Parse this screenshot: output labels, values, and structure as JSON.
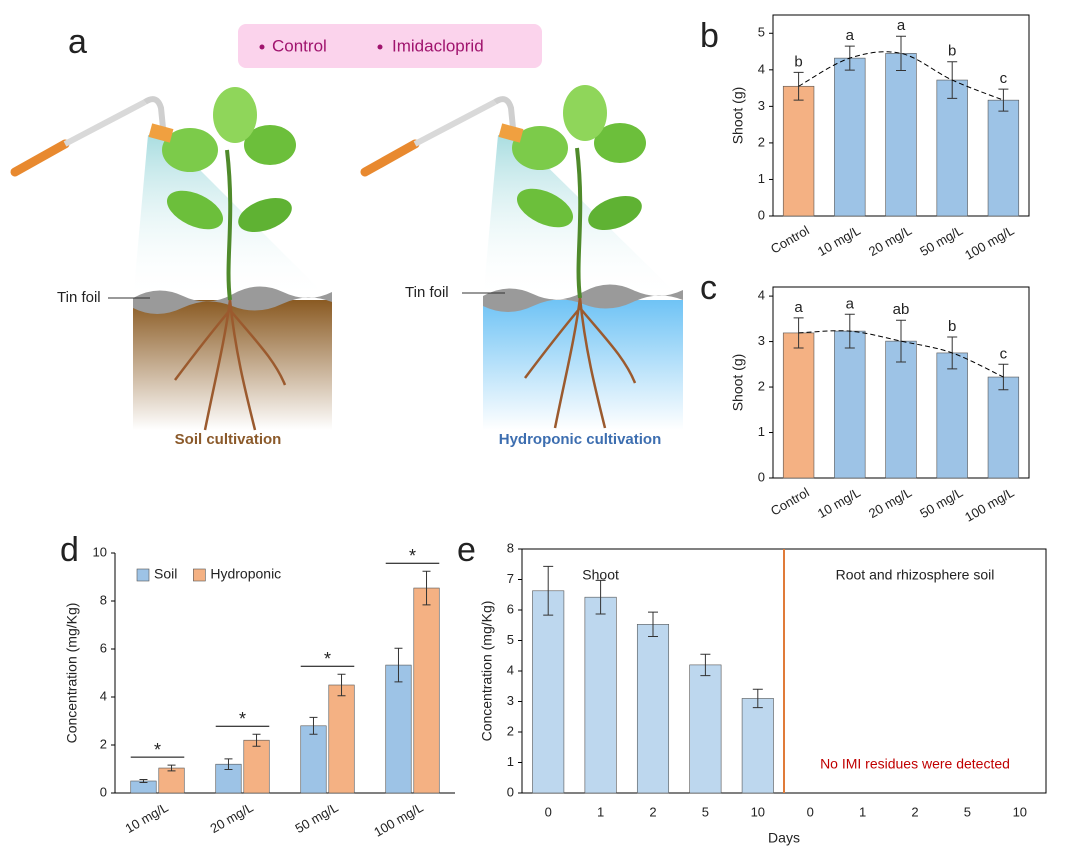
{
  "illustration": {
    "label": "a",
    "legend": [
      "Control",
      "Imidacloprid"
    ],
    "left": {
      "foil": "Tin foil",
      "caption": "Soil cultivation"
    },
    "right": {
      "foil": "Tin foil",
      "caption": "Hydroponic cultivation"
    }
  },
  "chart_data": [
    {
      "type": "bar",
      "label": "b",
      "ylabel": "Shoot (g)",
      "categories": [
        "Control",
        "10 mg/L",
        "20 mg/L",
        "50 mg/L",
        "100 mg/L"
      ],
      "values": [
        3.55,
        4.32,
        4.45,
        3.72,
        3.17
      ],
      "errors": [
        0.38,
        0.33,
        0.47,
        0.5,
        0.3
      ],
      "letters": [
        "b",
        "a",
        "a",
        "b",
        "c"
      ],
      "colors": [
        "#f4b183",
        "#9dc3e6",
        "#9dc3e6",
        "#9dc3e6",
        "#9dc3e6"
      ],
      "ylim": [
        0,
        5.5
      ],
      "yticks": [
        0,
        1,
        2,
        3,
        4,
        5
      ],
      "frame": "box",
      "trendline": "dashed",
      "xtick_rotation": -30
    },
    {
      "type": "bar",
      "label": "c",
      "ylabel": "Shoot (g)",
      "categories": [
        "Control",
        "10 mg/L",
        "20 mg/L",
        "50 mg/L",
        "100 mg/L"
      ],
      "values": [
        3.19,
        3.23,
        3.01,
        2.75,
        2.22
      ],
      "errors": [
        0.33,
        0.37,
        0.46,
        0.35,
        0.28
      ],
      "letters": [
        "a",
        "a",
        "ab",
        "b",
        "c"
      ],
      "colors": [
        "#f4b183",
        "#9dc3e6",
        "#9dc3e6",
        "#9dc3e6",
        "#9dc3e6"
      ],
      "ylim": [
        0,
        4.2
      ],
      "yticks": [
        0,
        1,
        2,
        3,
        4
      ],
      "frame": "box",
      "trendline": "dashed",
      "xtick_rotation": -30
    },
    {
      "type": "grouped_bar",
      "label": "d",
      "ylabel": "Concentration (mg/Kg)",
      "categories": [
        "10 mg/L",
        "20 mg/L",
        "50 mg/L",
        "100 mg/L"
      ],
      "series": [
        {
          "name": "Soil",
          "color": "#9dc3e6",
          "values": [
            0.5,
            1.2,
            2.8,
            5.33
          ],
          "errors": [
            0.06,
            0.22,
            0.35,
            0.7
          ]
        },
        {
          "name": "Hydroponic",
          "color": "#f4b183",
          "values": [
            1.04,
            2.2,
            4.5,
            8.54
          ],
          "errors": [
            0.12,
            0.25,
            0.45,
            0.7
          ]
        }
      ],
      "annotations": [
        "*",
        "*",
        "*",
        "*"
      ],
      "ylim": [
        0,
        10
      ],
      "yticks": [
        0,
        2,
        4,
        6,
        8,
        10
      ],
      "frame": "axes",
      "legend": "top-left",
      "xtick_rotation": -30
    },
    {
      "type": "bar",
      "label": "e",
      "ylabel": "Concentration (mg/Kg)",
      "xlabel": "Days",
      "categories": [
        "0",
        "1",
        "2",
        "5",
        "10",
        "0",
        "1",
        "2",
        "5",
        "10"
      ],
      "values": [
        6.63,
        6.42,
        5.53,
        4.2,
        3.1,
        null,
        null,
        null,
        null,
        null
      ],
      "errors": [
        0.8,
        0.55,
        0.4,
        0.35,
        0.3,
        null,
        null,
        null,
        null,
        null
      ],
      "color": "#bdd7ee",
      "sections": [
        "Shoot",
        "Root and rhizosphere soil"
      ],
      "note": "No IMI residues were detected",
      "note_color": "#c00000",
      "divider_color": "#e07b39",
      "ylim": [
        0,
        8
      ],
      "yticks": [
        0,
        1,
        2,
        3,
        4,
        5,
        6,
        7,
        8
      ],
      "frame": "box",
      "xtick_rotation": 0
    }
  ]
}
